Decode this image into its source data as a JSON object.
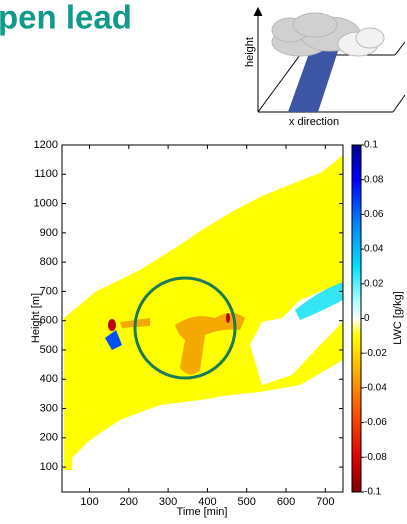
{
  "title": "pen lead",
  "inset": {
    "y_label": "height",
    "x_label": "x direction"
  },
  "chart_data": {
    "type": "contour",
    "x_label": "Time [min]",
    "y_label": "Height [m]",
    "xlim": [
      30,
      745
    ],
    "ylim": [
      15,
      1200
    ],
    "xticks": [
      100,
      200,
      300,
      400,
      500,
      600,
      700
    ],
    "yticks": [
      100,
      200,
      300,
      400,
      500,
      600,
      700,
      800,
      900,
      1000,
      1100,
      1200
    ],
    "colorbar": {
      "label": "LWC [g/kg]",
      "lim": [
        -0.1,
        0.1
      ],
      "ticks": [
        -0.1,
        -0.08,
        -0.06,
        -0.04,
        -0.02,
        0,
        0.02,
        0.04,
        0.06,
        0.08,
        0.1
      ]
    }
  }
}
